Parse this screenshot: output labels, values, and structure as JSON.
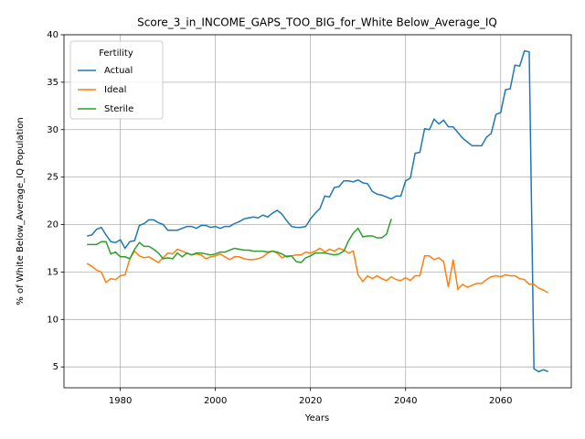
{
  "chart_data": {
    "type": "line",
    "title": "Score_3_in_INCOME_GAPS_TOO_BIG_for_White Below_Average_IQ",
    "x_label": "Years",
    "y_label": "% of White Below_Average_IQ Population",
    "legend_title": "Fertility",
    "legend_loc": "upper left",
    "grid": true,
    "xlim": [
      1968.15,
      2074.85
    ],
    "ylim": [
      2.8,
      40
    ],
    "xticks": [
      1980,
      2000,
      2020,
      2040,
      2060
    ],
    "yticks": [
      5,
      10,
      15,
      20,
      25,
      30,
      35,
      40
    ],
    "x": [
      1973,
      1974,
      1975,
      1976,
      1977,
      1978,
      1979,
      1980,
      1981,
      1982,
      1983,
      1984,
      1985,
      1986,
      1987,
      1988,
      1989,
      1990,
      1991,
      1992,
      1993,
      1994,
      1995,
      1996,
      1997,
      1998,
      1999,
      2000,
      2001,
      2002,
      2003,
      2004,
      2005,
      2006,
      2007,
      2008,
      2009,
      2010,
      2011,
      2012,
      2013,
      2014,
      2015,
      2016,
      2017,
      2018,
      2019,
      2020,
      2021,
      2022,
      2023,
      2024,
      2025,
      2026,
      2027,
      2028,
      2029,
      2030,
      2031,
      2032,
      2033,
      2034,
      2035,
      2036,
      2037,
      2038,
      2039,
      2040,
      2041,
      2042,
      2043,
      2044,
      2045,
      2046,
      2047,
      2048,
      2049,
      2050,
      2051,
      2052,
      2053,
      2054,
      2055,
      2056,
      2057,
      2058,
      2059,
      2060,
      2061,
      2062,
      2063,
      2064,
      2065,
      2066,
      2067,
      2068,
      2069,
      2070
    ],
    "series": [
      {
        "name": "Actual",
        "color": "#1f77b4",
        "values": [
          18.8,
          18.9,
          19.5,
          19.7,
          18.9,
          18.2,
          18.1,
          18.4,
          17.5,
          18.2,
          18.3,
          19.9,
          20.1,
          20.5,
          20.5,
          20.2,
          20.0,
          19.4,
          19.4,
          19.4,
          19.6,
          19.8,
          19.8,
          19.6,
          19.9,
          19.9,
          19.7,
          19.8,
          19.6,
          19.8,
          19.8,
          20.1,
          20.3,
          20.6,
          20.7,
          20.8,
          20.7,
          21.0,
          20.8,
          21.2,
          21.5,
          21.1,
          20.4,
          19.8,
          19.7,
          19.7,
          19.8,
          20.6,
          21.2,
          21.7,
          23.0,
          22.9,
          23.9,
          24.0,
          24.6,
          24.6,
          24.5,
          24.7,
          24.4,
          24.3,
          23.5,
          23.2,
          23.1,
          22.9,
          22.7,
          23.0,
          23.0,
          24.6,
          24.9,
          27.5,
          27.6,
          30.1,
          30.0,
          31.1,
          30.6,
          31.0,
          30.3,
          30.3,
          29.7,
          29.1,
          28.7,
          28.3,
          28.3,
          28.3,
          29.2,
          29.6,
          31.6,
          31.8,
          34.2,
          34.3,
          36.8,
          36.7,
          38.3,
          38.2,
          4.8,
          4.5,
          4.7,
          4.5
        ]
      },
      {
        "name": "Ideal",
        "color": "#ff7f0e",
        "values": [
          15.9,
          15.6,
          15.2,
          15.0,
          13.9,
          14.3,
          14.2,
          14.6,
          14.7,
          16.4,
          17.2,
          16.7,
          16.5,
          16.6,
          16.3,
          16.0,
          16.5,
          17.0,
          16.9,
          17.4,
          17.2,
          17.0,
          16.8,
          16.9,
          16.8,
          16.4,
          16.6,
          16.7,
          16.9,
          16.6,
          16.3,
          16.6,
          16.6,
          16.4,
          16.3,
          16.3,
          16.4,
          16.6,
          17.0,
          17.2,
          17.0,
          16.5,
          16.7,
          16.7,
          16.8,
          16.8,
          17.1,
          17.0,
          17.2,
          17.5,
          17.1,
          17.4,
          17.2,
          17.5,
          17.3,
          17.0,
          17.2,
          14.7,
          14.0,
          14.6,
          14.3,
          14.6,
          14.3,
          14.1,
          14.5,
          14.2,
          14.1,
          14.4,
          14.1,
          14.6,
          14.6,
          16.7,
          16.7,
          16.3,
          16.5,
          16.1,
          13.4,
          16.3,
          13.2,
          13.7,
          13.4,
          13.6,
          13.8,
          13.8,
          14.2,
          14.5,
          14.6,
          14.5,
          14.7,
          14.6,
          14.6,
          14.3,
          14.2,
          13.7,
          13.7,
          13.3,
          13.1,
          12.8
        ]
      },
      {
        "name": "Sterile",
        "color": "#2ca02c",
        "values": [
          17.9,
          17.9,
          17.9,
          18.2,
          18.2,
          16.9,
          17.1,
          16.6,
          16.6,
          16.4,
          17.4,
          18.1,
          17.7,
          17.7,
          17.4,
          17.0,
          16.4,
          16.5,
          16.4,
          17.0,
          16.6,
          17.0,
          16.8,
          17.0,
          17.0,
          16.9,
          16.8,
          16.9,
          17.1,
          17.1,
          17.3,
          17.5,
          17.4,
          17.3,
          17.3,
          17.2,
          17.2,
          17.2,
          17.1,
          17.2,
          17.1,
          16.9,
          16.6,
          16.7,
          16.1,
          16.0,
          16.5,
          16.7,
          17.0,
          17.0,
          17.0,
          16.9,
          16.8,
          16.9,
          17.2,
          18.3,
          19.1,
          19.6,
          18.7,
          18.8,
          18.8,
          18.6,
          18.6,
          19.0,
          20.6,
          null,
          null,
          null,
          null,
          null,
          null,
          null,
          null,
          null,
          null,
          null,
          null,
          null,
          null,
          null,
          null,
          null,
          null,
          null,
          null,
          null,
          null,
          null,
          null,
          null,
          null,
          null,
          null,
          null,
          null,
          null,
          null,
          null
        ]
      }
    ]
  }
}
